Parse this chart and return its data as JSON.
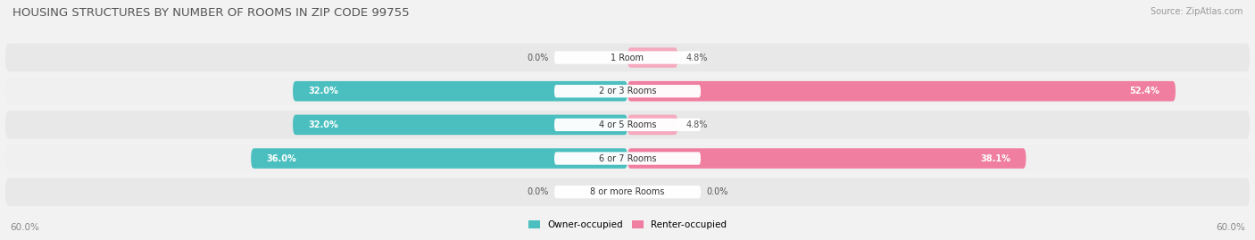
{
  "title": "HOUSING STRUCTURES BY NUMBER OF ROOMS IN ZIP CODE 99755",
  "source": "Source: ZipAtlas.com",
  "categories": [
    "1 Room",
    "2 or 3 Rooms",
    "4 or 5 Rooms",
    "6 or 7 Rooms",
    "8 or more Rooms"
  ],
  "owner_values": [
    0.0,
    32.0,
    32.0,
    36.0,
    0.0
  ],
  "renter_values": [
    4.8,
    52.4,
    4.8,
    38.1,
    0.0
  ],
  "owner_color": "#4BBFBF",
  "renter_color": "#F07EA0",
  "owner_color_light": "#90D4D8",
  "renter_color_light": "#F5AABF",
  "axis_max": 60.0,
  "bar_height": 0.6,
  "row_bg_color": "#e8e8e8",
  "row_light_color": "#f0f0f0",
  "fig_bg": "#f2f2f2"
}
